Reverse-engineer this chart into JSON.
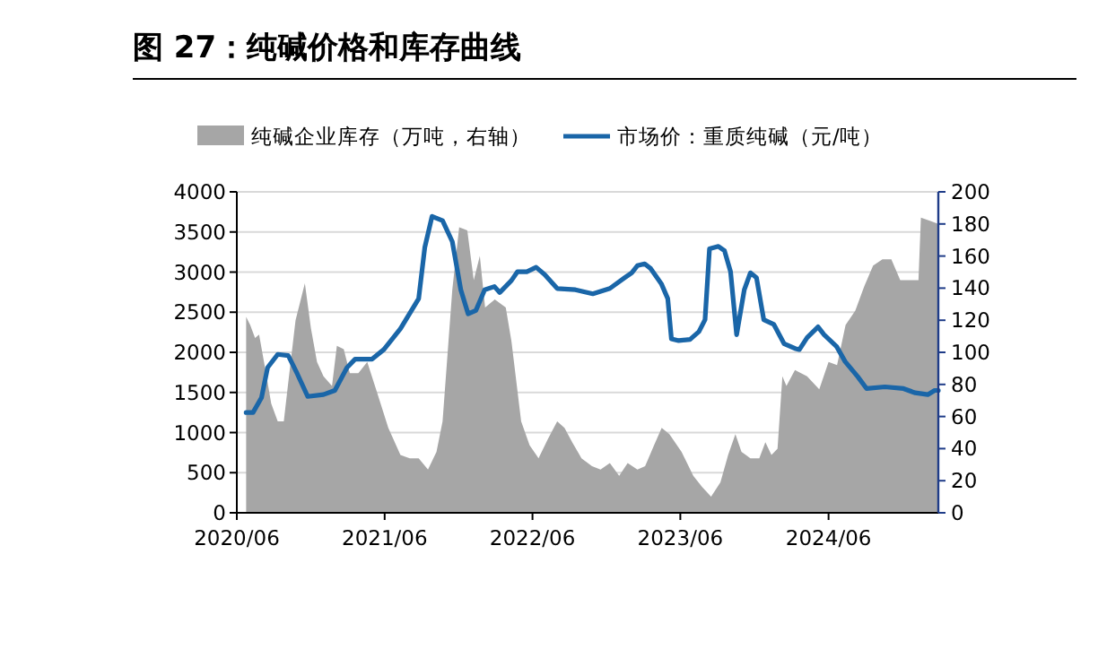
{
  "chart_data": {
    "type": "line",
    "title": "图 27：纯碱价格和库存曲线",
    "xlim": [
      "2020-06-01",
      "2025-02-27"
    ],
    "xticks": [
      {
        "value": "2020-06",
        "label": "2020/06"
      },
      {
        "value": "2021-06",
        "label": "2021/06"
      },
      {
        "value": "2022-06",
        "label": "2022/06"
      },
      {
        "value": "2023-06",
        "label": "2023/06"
      },
      {
        "value": "2024-06",
        "label": "2024/06"
      }
    ],
    "ylim": [
      0,
      4000
    ],
    "yticks": [
      0,
      500,
      1000,
      1500,
      2000,
      2500,
      3000,
      3500,
      4000
    ],
    "y2lim": [
      0,
      200
    ],
    "y2ticks": [
      0,
      20,
      40,
      60,
      80,
      100,
      120,
      140,
      160,
      180,
      200
    ],
    "grid": "y",
    "legend": "top",
    "series": [
      {
        "name": "纯碱企业库存（万吨，右轴）",
        "type": "area",
        "axis": "y2",
        "color": "#a6a6a6",
        "x": [
          "2020-06-24",
          "2020-07-04",
          "2020-07-16",
          "2020-07-26",
          "2020-08-10",
          "2020-08-25",
          "2020-09-10",
          "2020-09-25",
          "2020-10-05",
          "2020-10-24",
          "2020-11-16",
          "2020-12-01",
          "2020-12-16",
          "2021-01-01",
          "2021-01-22",
          "2021-02-03",
          "2021-02-20",
          "2021-03-07",
          "2021-03-28",
          "2021-04-19",
          "2021-05-12",
          "2021-06-10",
          "2021-07-10",
          "2021-08-02",
          "2021-08-24",
          "2021-09-16",
          "2021-10-07",
          "2021-10-22",
          "2021-11-15",
          "2021-12-02",
          "2021-12-22",
          "2022-01-07",
          "2022-01-22",
          "2022-02-04",
          "2022-02-28",
          "2022-03-27",
          "2022-04-10",
          "2022-05-04",
          "2022-05-25",
          "2022-06-16",
          "2022-07-09",
          "2022-08-01",
          "2022-08-19",
          "2022-09-07",
          "2022-09-30",
          "2022-10-26",
          "2022-11-16",
          "2022-12-09",
          "2023-01-01",
          "2023-01-22",
          "2023-02-15",
          "2023-03-06",
          "2023-03-28",
          "2023-04-16",
          "2023-05-05",
          "2023-06-04",
          "2023-07-03",
          "2023-07-25",
          "2023-08-16",
          "2023-09-08",
          "2023-09-27",
          "2023-10-15",
          "2023-10-30",
          "2023-11-21",
          "2023-12-13",
          "2023-12-28",
          "2024-01-12",
          "2024-01-27",
          "2024-02-08",
          "2024-02-18",
          "2024-03-10",
          "2024-04-09",
          "2024-05-09",
          "2024-06-01",
          "2024-06-22",
          "2024-07-13",
          "2024-08-06",
          "2024-08-28",
          "2024-09-19",
          "2024-10-12",
          "2024-11-03",
          "2024-11-25",
          "2024-12-16",
          "2025-01-09",
          "2025-01-15",
          "2025-02-06",
          "2025-02-27"
        ],
        "values": [
          122,
          117,
          109,
          111,
          90,
          68,
          57,
          57,
          79,
          120,
          143,
          115,
          94,
          85,
          79,
          104,
          102,
          87,
          87,
          94,
          76,
          53,
          36,
          34,
          34,
          27,
          38,
          57,
          139,
          178,
          176,
          145,
          160,
          128,
          133,
          128,
          107,
          57,
          42,
          34,
          46,
          57,
          53,
          44,
          34,
          29,
          27,
          31,
          23,
          31,
          27,
          29,
          42,
          53,
          49,
          38,
          23,
          16,
          10,
          19,
          36,
          49,
          38,
          34,
          34,
          44,
          36,
          40,
          85,
          79,
          89,
          85,
          77,
          94,
          92,
          117,
          126,
          141,
          154,
          158,
          158,
          145,
          145,
          145,
          184,
          182,
          180
        ]
      },
      {
        "name": "市场价：重质纯碱（元/吨）",
        "color": "#1a66a8",
        "x": [
          "2020-06-24",
          "2020-07-11",
          "2020-08-01",
          "2020-08-16",
          "2020-09-10",
          "2020-10-06",
          "2020-10-28",
          "2020-11-23",
          "2021-01-01",
          "2021-01-29",
          "2021-02-28",
          "2021-03-20",
          "2021-05-01",
          "2021-05-30",
          "2021-07-10",
          "2021-08-24",
          "2021-09-08",
          "2021-09-26",
          "2021-10-22",
          "2021-11-15",
          "2021-12-06",
          "2021-12-24",
          "2022-01-12",
          "2022-02-03",
          "2022-02-27",
          "2022-03-12",
          "2022-04-10",
          "2022-04-25",
          "2022-05-18",
          "2022-06-10",
          "2022-07-01",
          "2022-08-01",
          "2022-09-15",
          "2022-10-28",
          "2022-12-09",
          "2023-01-15",
          "2023-02-01",
          "2023-02-15",
          "2023-03-05",
          "2023-03-20",
          "2023-04-15",
          "2023-05-01",
          "2023-05-10",
          "2023-05-28",
          "2023-06-25",
          "2023-07-17",
          "2023-08-01",
          "2023-08-12",
          "2023-09-03",
          "2023-09-18",
          "2023-10-03",
          "2023-10-18",
          "2023-11-06",
          "2023-11-21",
          "2023-12-06",
          "2023-12-24",
          "2024-01-18",
          "2024-02-12",
          "2024-03-10",
          "2024-03-21",
          "2024-04-09",
          "2024-05-06",
          "2024-05-21",
          "2024-06-21",
          "2024-07-12",
          "2024-08-12",
          "2024-09-03",
          "2024-10-18",
          "2024-12-03",
          "2025-01-01",
          "2025-02-01",
          "2025-02-18",
          "2025-02-27"
        ],
        "values": [
          1250,
          1250,
          1435,
          1810,
          1975,
          1960,
          1735,
          1450,
          1473,
          1525,
          1810,
          1915,
          1915,
          2035,
          2295,
          2670,
          3305,
          3695,
          3640,
          3380,
          2780,
          2480,
          2520,
          2780,
          2820,
          2745,
          2895,
          3005,
          3005,
          3060,
          2970,
          2795,
          2780,
          2730,
          2796,
          2931,
          2991,
          3080,
          3103,
          3043,
          2856,
          2669,
          2168,
          2146,
          2161,
          2258,
          2407,
          3290,
          3320,
          3267,
          3005,
          2220,
          2781,
          2991,
          2931,
          2407,
          2347,
          2108,
          2048,
          2034,
          2183,
          2318,
          2220,
          2071,
          1884,
          1697,
          1548,
          1570,
          1548,
          1495,
          1473,
          1525,
          1525
        ]
      }
    ]
  }
}
